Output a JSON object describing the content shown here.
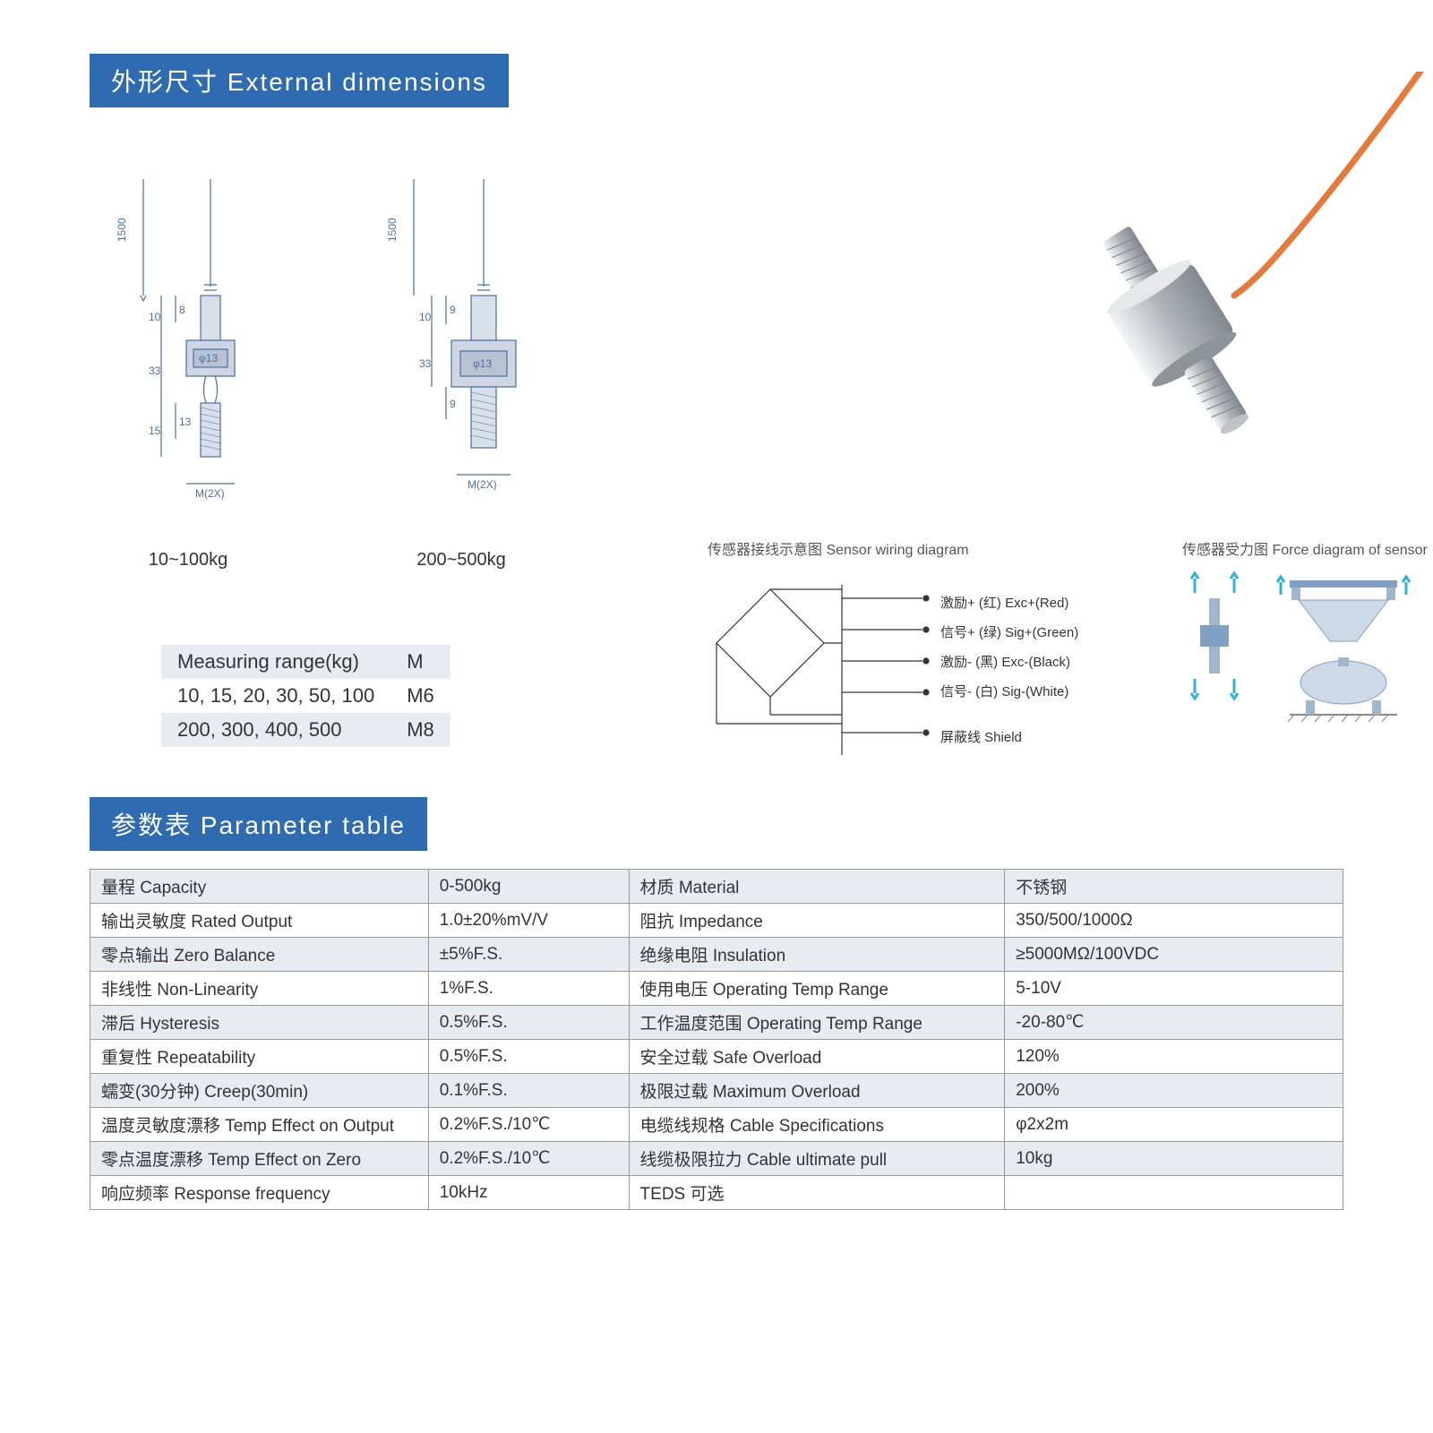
{
  "headers": {
    "dimensions": "外形尺寸  External dimensions",
    "parameters": "参数表    Parameter table"
  },
  "dim_drawings": {
    "left": {
      "caption": "10~100kg",
      "dims": {
        "len_1500": "1500",
        "a": "10",
        "b": "8",
        "c": "33",
        "d": "15",
        "e": "13",
        "dia": "φ13",
        "thread": "M(2X)"
      }
    },
    "right": {
      "caption": "200~500kg",
      "dims": {
        "len_1500": "1500",
        "a": "10",
        "b": "9",
        "c": "33",
        "e": "9",
        "dia": "φ13",
        "thread": "M(2X)"
      }
    }
  },
  "range_table": {
    "headers": [
      "Measuring range(kg)",
      "M"
    ],
    "rows": [
      [
        "10, 15, 20, 30, 50, 100",
        "M6"
      ],
      [
        "200, 300, 400, 500",
        "M8"
      ]
    ]
  },
  "wiring": {
    "caption": "传感器接线示意图 Sensor wiring diagram",
    "lines": [
      "激励+ (红)  Exc+(Red)",
      "信号+ (绿)  Sig+(Green)",
      "激励- (黑)  Exc-(Black)",
      "信号- (白)  Sig-(White)",
      "屏蔽线 Shield"
    ]
  },
  "force": {
    "caption": "传感器受力图 Force diagram of sensor"
  },
  "product_photo": {
    "cable_color": "#e67a3a",
    "body_fill": "#c8cacc",
    "body_hi": "#eef0f2",
    "body_lo": "#8a9096"
  },
  "param_table": {
    "rows": [
      [
        "量程 Capacity",
        "0-500kg",
        "材质 Material",
        "不锈钢"
      ],
      [
        "输出灵敏度 Rated Output",
        "1.0±20%mV/V",
        "阻抗 Impedance",
        "350/500/1000Ω"
      ],
      [
        "零点输出 Zero Balance",
        "±5%F.S.",
        "绝缘电阻 Insulation",
        "≥5000MΩ/100VDC"
      ],
      [
        "非线性 Non-Linearity",
        "1%F.S.",
        "使用电压 Operating Temp Range",
        "5-10V"
      ],
      [
        "滞后 Hysteresis",
        "0.5%F.S.",
        "工作温度范围 Operating Temp Range",
        "-20-80℃"
      ],
      [
        "重复性 Repeatability",
        "0.5%F.S.",
        "安全过载 Safe Overload",
        "120%"
      ],
      [
        "蠕变(30分钟) Creep(30min)",
        "0.1%F.S.",
        "极限过载 Maximum Overload",
        "200%"
      ],
      [
        "温度灵敏度漂移 Temp Effect on Output",
        "0.2%F.S./10℃",
        "电缆线规格 Cable Specifications",
        "φ2x2m"
      ],
      [
        "零点温度漂移 Temp Effect on Zero",
        "0.2%F.S./10℃",
        "线缆极限拉力 Cable ultimate pull",
        "10kg"
      ],
      [
        "响应频率 Response frequency",
        "10kHz",
        "TEDS 可选",
        ""
      ]
    ]
  }
}
